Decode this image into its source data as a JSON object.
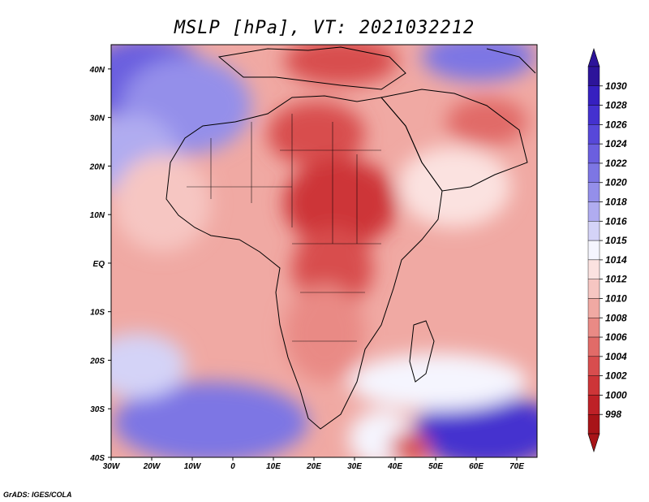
{
  "title": "MSLP [hPa], VT: 2021032212",
  "credit": "GrADS: IGES/COLA",
  "variable": "MSLP",
  "units": "hPa",
  "valid_time": "2021032212",
  "map": {
    "region": "Africa",
    "lon_range": [
      -30,
      75
    ],
    "lat_range": [
      -40,
      45
    ],
    "x_tick_labels": [
      "30W",
      "20W",
      "10W",
      "0",
      "10E",
      "20E",
      "30E",
      "40E",
      "50E",
      "60E",
      "70E"
    ],
    "y_tick_labels": [
      "40N",
      "30N",
      "20N",
      "10N",
      "EQ",
      "10S",
      "20S",
      "30S",
      "40S"
    ]
  },
  "colorbar": {
    "labels": [
      "1030",
      "1028",
      "1026",
      "1024",
      "1022",
      "1020",
      "1018",
      "1016",
      "1015",
      "1014",
      "1012",
      "1010",
      "1008",
      "1006",
      "1004",
      "1002",
      "1000",
      "998"
    ],
    "colors": [
      "#2d149a",
      "#3620c0",
      "#4431cf",
      "#5748d9",
      "#6b5fdf",
      "#7d76e4",
      "#948fea",
      "#b0acf0",
      "#d4d3f7",
      "#f5f5fe",
      "#fbe2e0",
      "#f6c6c2",
      "#f0a9a3",
      "#e98a85",
      "#e16b68",
      "#d84d4e",
      "#cd3538",
      "#be2127",
      "#a81418"
    ],
    "arrow_top_color": "#2d149a",
    "arrow_bottom_color": "#a81418"
  },
  "map_fill": {
    "background": "#f0a9a3",
    "land_outline": "#000000"
  }
}
